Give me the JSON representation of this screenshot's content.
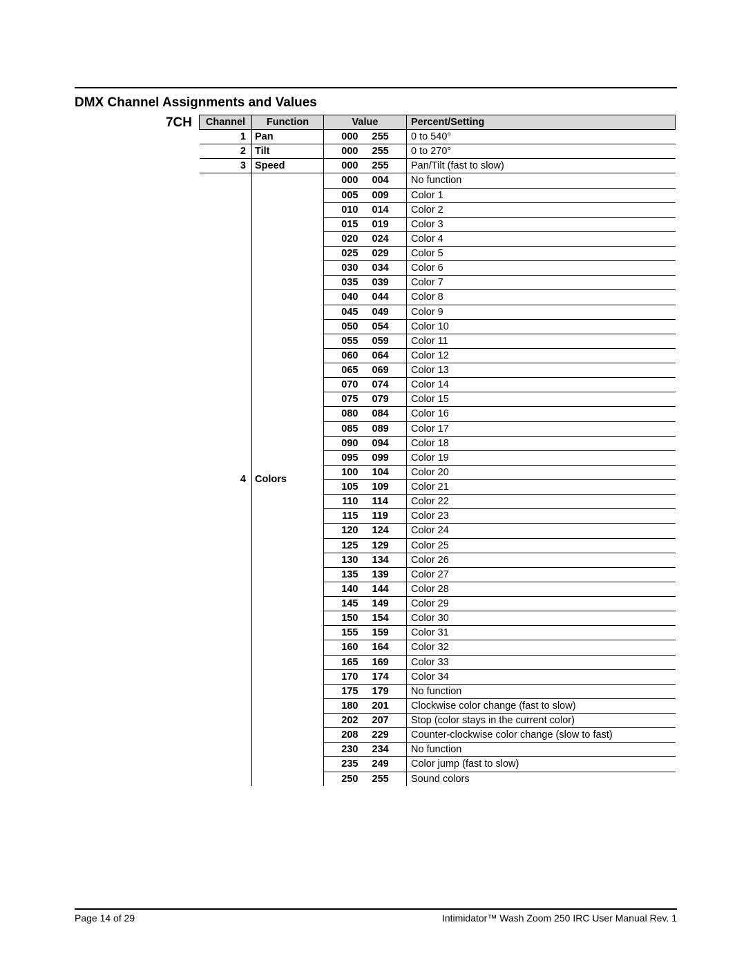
{
  "title": "DMX Channel Assignments and Values",
  "mode_label": "7CH",
  "headers": {
    "channel": "Channel",
    "function": "Function",
    "value": "Value",
    "setting": "Percent/Setting"
  },
  "groups": [
    {
      "channel": "1",
      "function": "Pan",
      "rows": [
        {
          "a": "000",
          "b": "255",
          "setting": "0 to 540°"
        }
      ]
    },
    {
      "channel": "2",
      "function": "Tilt",
      "rows": [
        {
          "a": "000",
          "b": "255",
          "setting": "0 to 270°"
        }
      ]
    },
    {
      "channel": "3",
      "function": "Speed",
      "rows": [
        {
          "a": "000",
          "b": "255",
          "setting": "Pan/Tilt (fast to slow)"
        }
      ]
    },
    {
      "channel": "4",
      "function": "Colors",
      "rows": [
        {
          "a": "000",
          "b": "004",
          "setting": "No function"
        },
        {
          "a": "005",
          "b": "009",
          "setting": "Color 1"
        },
        {
          "a": "010",
          "b": "014",
          "setting": "Color 2"
        },
        {
          "a": "015",
          "b": "019",
          "setting": "Color 3"
        },
        {
          "a": "020",
          "b": "024",
          "setting": "Color 4"
        },
        {
          "a": "025",
          "b": "029",
          "setting": "Color 5"
        },
        {
          "a": "030",
          "b": "034",
          "setting": "Color 6"
        },
        {
          "a": "035",
          "b": "039",
          "setting": "Color 7"
        },
        {
          "a": "040",
          "b": "044",
          "setting": "Color 8"
        },
        {
          "a": "045",
          "b": "049",
          "setting": "Color 9"
        },
        {
          "a": "050",
          "b": "054",
          "setting": "Color 10"
        },
        {
          "a": "055",
          "b": "059",
          "setting": "Color 11"
        },
        {
          "a": "060",
          "b": "064",
          "setting": "Color 12"
        },
        {
          "a": "065",
          "b": "069",
          "setting": "Color 13"
        },
        {
          "a": "070",
          "b": "074",
          "setting": "Color 14"
        },
        {
          "a": "075",
          "b": "079",
          "setting": "Color 15"
        },
        {
          "a": "080",
          "b": "084",
          "setting": "Color 16"
        },
        {
          "a": "085",
          "b": "089",
          "setting": "Color 17"
        },
        {
          "a": "090",
          "b": "094",
          "setting": "Color 18"
        },
        {
          "a": "095",
          "b": "099",
          "setting": "Color 19"
        },
        {
          "a": "100",
          "b": "104",
          "setting": "Color 20"
        },
        {
          "a": "105",
          "b": "109",
          "setting": "Color 21"
        },
        {
          "a": "110",
          "b": "114",
          "setting": "Color 22"
        },
        {
          "a": "115",
          "b": "119",
          "setting": "Color 23"
        },
        {
          "a": "120",
          "b": "124",
          "setting": "Color 24"
        },
        {
          "a": "125",
          "b": "129",
          "setting": "Color 25"
        },
        {
          "a": "130",
          "b": "134",
          "setting": "Color 26"
        },
        {
          "a": "135",
          "b": "139",
          "setting": "Color 27"
        },
        {
          "a": "140",
          "b": "144",
          "setting": "Color 28"
        },
        {
          "a": "145",
          "b": "149",
          "setting": "Color 29"
        },
        {
          "a": "150",
          "b": "154",
          "setting": "Color 30"
        },
        {
          "a": "155",
          "b": "159",
          "setting": "Color 31"
        },
        {
          "a": "160",
          "b": "164",
          "setting": "Color 32"
        },
        {
          "a": "165",
          "b": "169",
          "setting": "Color 33"
        },
        {
          "a": "170",
          "b": "174",
          "setting": "Color 34"
        },
        {
          "a": "175",
          "b": "179",
          "setting": "No function"
        },
        {
          "a": "180",
          "b": "201",
          "setting": "Clockwise color change (fast to slow)"
        },
        {
          "a": "202",
          "b": "207",
          "setting": "Stop (color stays in the current color)"
        },
        {
          "a": "208",
          "b": "229",
          "setting": "Counter-clockwise color change (slow to fast)"
        },
        {
          "a": "230",
          "b": "234",
          "setting": "No function"
        },
        {
          "a": "235",
          "b": "249",
          "setting": "Color jump (fast to slow)"
        },
        {
          "a": "250",
          "b": "255",
          "setting": "Sound colors"
        }
      ]
    }
  ],
  "footer": {
    "left": "Page 14 of 29",
    "right": "Intimidator™ Wash Zoom 250 IRC User Manual Rev. 1"
  }
}
